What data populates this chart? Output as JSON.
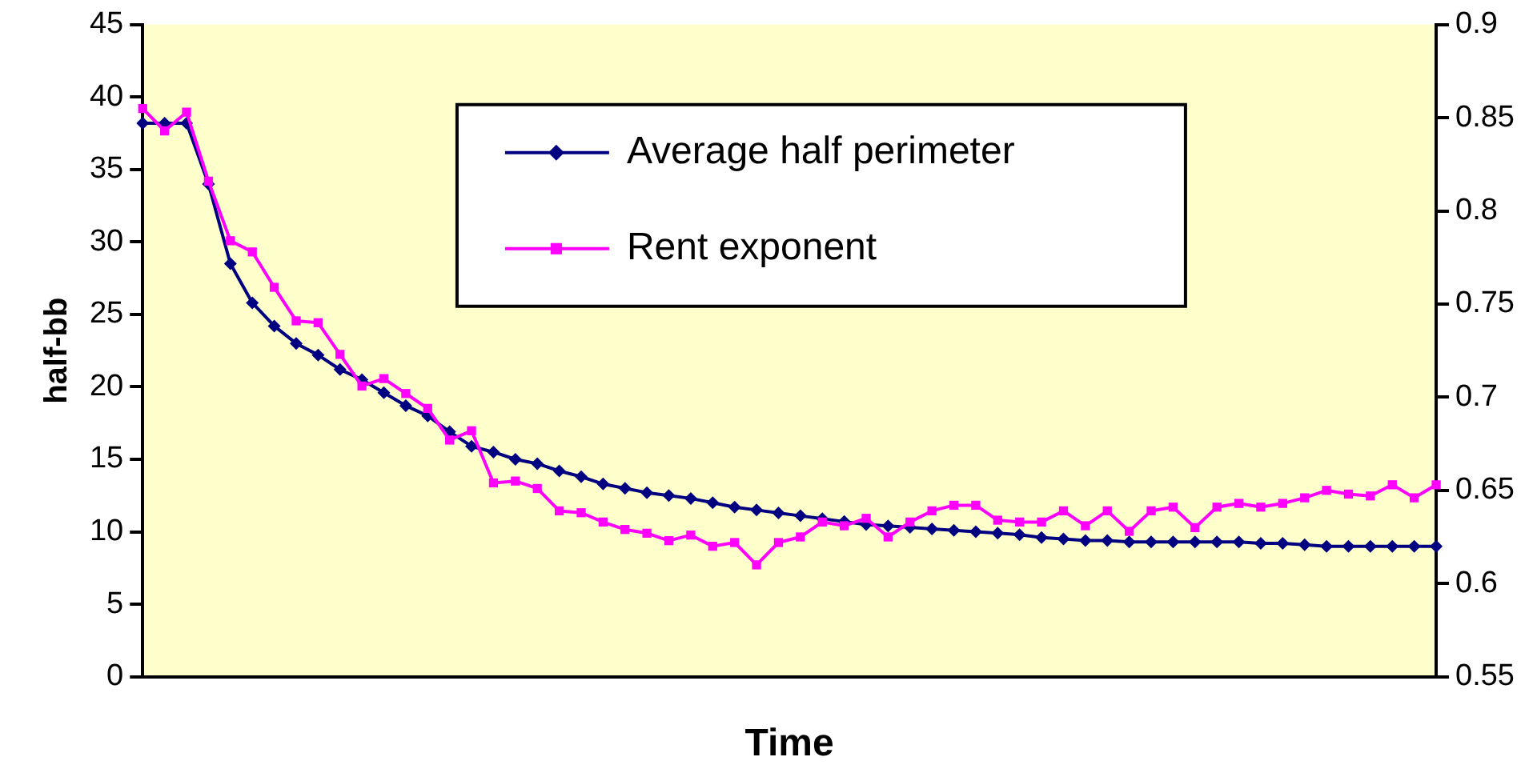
{
  "chart_data": {
    "type": "line",
    "xlabel": "Time",
    "ylabel": "half-bb",
    "categories": [
      null,
      null,
      null,
      null,
      null,
      null,
      null,
      null,
      null,
      null,
      null,
      null,
      null,
      null,
      null,
      null,
      null,
      null,
      null,
      null,
      null,
      null,
      null,
      null,
      null,
      null,
      null,
      null,
      null,
      null,
      null,
      null,
      null,
      null,
      null,
      null,
      null,
      null,
      null,
      null,
      null,
      null,
      null,
      null,
      null,
      null,
      null,
      null,
      null,
      null,
      null,
      null,
      null,
      null,
      null,
      null,
      null,
      null,
      null,
      null
    ],
    "ylim": [
      0,
      45
    ],
    "yticks": [
      0,
      5,
      10,
      15,
      20,
      25,
      30,
      35,
      40,
      45
    ],
    "y2lim": [
      0.55,
      0.9
    ],
    "y2ticks": [
      0.55,
      0.6,
      0.65,
      0.7,
      0.75,
      0.8,
      0.85,
      0.9
    ],
    "grid": false,
    "legend": "top",
    "line_style": "solid",
    "series": [
      {
        "name": "Average half perimeter",
        "color": "#000080",
        "marker": "diamond",
        "values": [
          38.2,
          38.2,
          38.2,
          34,
          28.5,
          25.8,
          24.2,
          23,
          22.2,
          21.2,
          20.5,
          19.6,
          18.7,
          18,
          16.9,
          15.9,
          15.5,
          15,
          14.7,
          14.2,
          13.8,
          13.3,
          13,
          12.7,
          12.5,
          12.3,
          12,
          11.7,
          11.5,
          11.3,
          11.1,
          10.9,
          10.7,
          10.5,
          10.4,
          10.3,
          10.2,
          10.1,
          10,
          9.9,
          9.8,
          9.6,
          9.5,
          9.4,
          9.4,
          9.3,
          9.3,
          9.3,
          9.3,
          9.3,
          9.3,
          9.2,
          9.2,
          9.1,
          9,
          9,
          9,
          9,
          9,
          9
        ]
      },
      {
        "name": "Rent exponent",
        "color": "#ff00ff",
        "marker": "square",
        "axis": "y2",
        "values": [
          0.855,
          0.843,
          0.853,
          0.816,
          0.784,
          0.778,
          0.759,
          0.741,
          0.74,
          0.723,
          0.706,
          0.71,
          0.702,
          0.694,
          0.677,
          0.682,
          0.654,
          0.655,
          0.651,
          0.639,
          0.638,
          0.633,
          0.629,
          0.627,
          0.623,
          0.626,
          0.62,
          0.622,
          0.61,
          0.622,
          0.625,
          0.633,
          0.631,
          0.635,
          0.625,
          0.633,
          0.639,
          0.642,
          0.642,
          0.634,
          0.633,
          0.633,
          0.639,
          0.631,
          0.639,
          0.628,
          0.639,
          0.641,
          0.63,
          0.641,
          0.643,
          0.641,
          0.643,
          0.646,
          0.65,
          0.648,
          0.647,
          0.653,
          0.646,
          0.653
        ]
      }
    ]
  }
}
